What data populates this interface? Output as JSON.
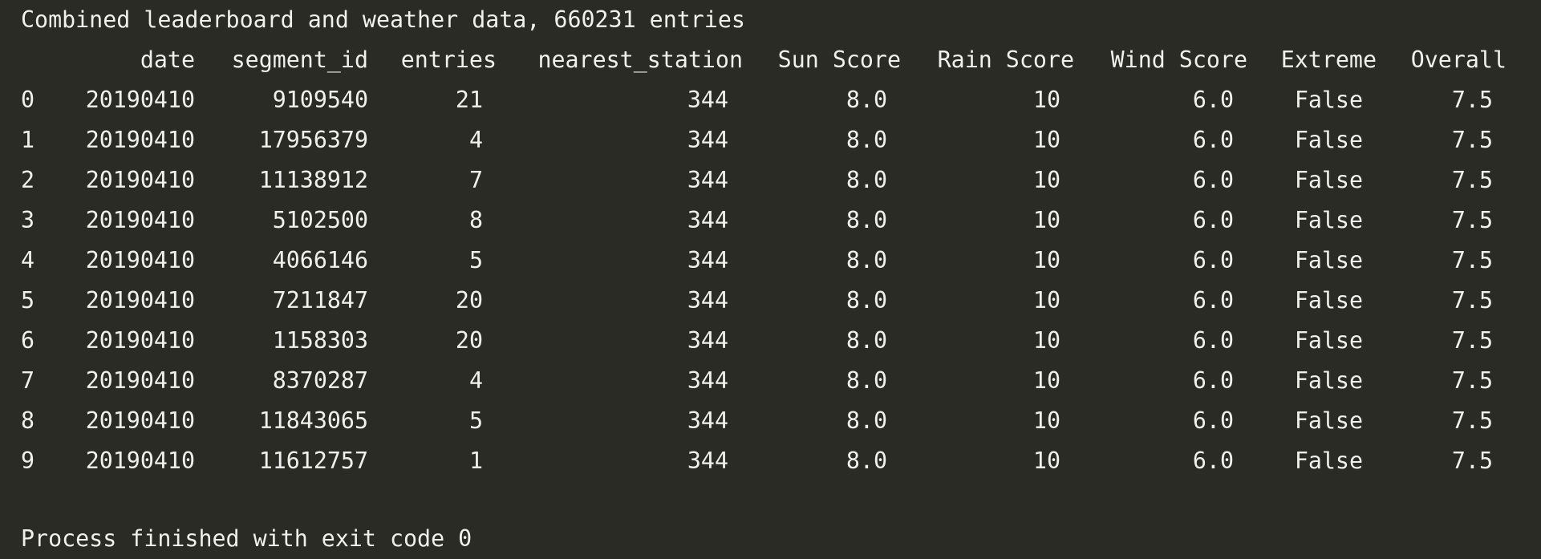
{
  "console": {
    "summary": "Combined leaderboard and weather data, 660231 entries",
    "footer": "Process finished with exit code 0"
  },
  "table": {
    "columns": [
      "date",
      "segment_id",
      "entries",
      "nearest_station",
      "Sun Score",
      "Rain Score",
      "Wind Score",
      "Extreme",
      "Overall"
    ],
    "rows": [
      {
        "index": "0",
        "date": "20190410",
        "segment_id": "9109540",
        "entries": "21",
        "nearest_station": "344",
        "sun": "8.0",
        "rain": "10",
        "wind": "6.0",
        "extreme": "False",
        "overall": "7.5"
      },
      {
        "index": "1",
        "date": "20190410",
        "segment_id": "17956379",
        "entries": "4",
        "nearest_station": "344",
        "sun": "8.0",
        "rain": "10",
        "wind": "6.0",
        "extreme": "False",
        "overall": "7.5"
      },
      {
        "index": "2",
        "date": "20190410",
        "segment_id": "11138912",
        "entries": "7",
        "nearest_station": "344",
        "sun": "8.0",
        "rain": "10",
        "wind": "6.0",
        "extreme": "False",
        "overall": "7.5"
      },
      {
        "index": "3",
        "date": "20190410",
        "segment_id": "5102500",
        "entries": "8",
        "nearest_station": "344",
        "sun": "8.0",
        "rain": "10",
        "wind": "6.0",
        "extreme": "False",
        "overall": "7.5"
      },
      {
        "index": "4",
        "date": "20190410",
        "segment_id": "4066146",
        "entries": "5",
        "nearest_station": "344",
        "sun": "8.0",
        "rain": "10",
        "wind": "6.0",
        "extreme": "False",
        "overall": "7.5"
      },
      {
        "index": "5",
        "date": "20190410",
        "segment_id": "7211847",
        "entries": "20",
        "nearest_station": "344",
        "sun": "8.0",
        "rain": "10",
        "wind": "6.0",
        "extreme": "False",
        "overall": "7.5"
      },
      {
        "index": "6",
        "date": "20190410",
        "segment_id": "1158303",
        "entries": "20",
        "nearest_station": "344",
        "sun": "8.0",
        "rain": "10",
        "wind": "6.0",
        "extreme": "False",
        "overall": "7.5"
      },
      {
        "index": "7",
        "date": "20190410",
        "segment_id": "8370287",
        "entries": "4",
        "nearest_station": "344",
        "sun": "8.0",
        "rain": "10",
        "wind": "6.0",
        "extreme": "False",
        "overall": "7.5"
      },
      {
        "index": "8",
        "date": "20190410",
        "segment_id": "11843065",
        "entries": "5",
        "nearest_station": "344",
        "sun": "8.0",
        "rain": "10",
        "wind": "6.0",
        "extreme": "False",
        "overall": "7.5"
      },
      {
        "index": "9",
        "date": "20190410",
        "segment_id": "11612757",
        "entries": "1",
        "nearest_station": "344",
        "sun": "8.0",
        "rain": "10",
        "wind": "6.0",
        "extreme": "False",
        "overall": "7.5"
      }
    ]
  }
}
